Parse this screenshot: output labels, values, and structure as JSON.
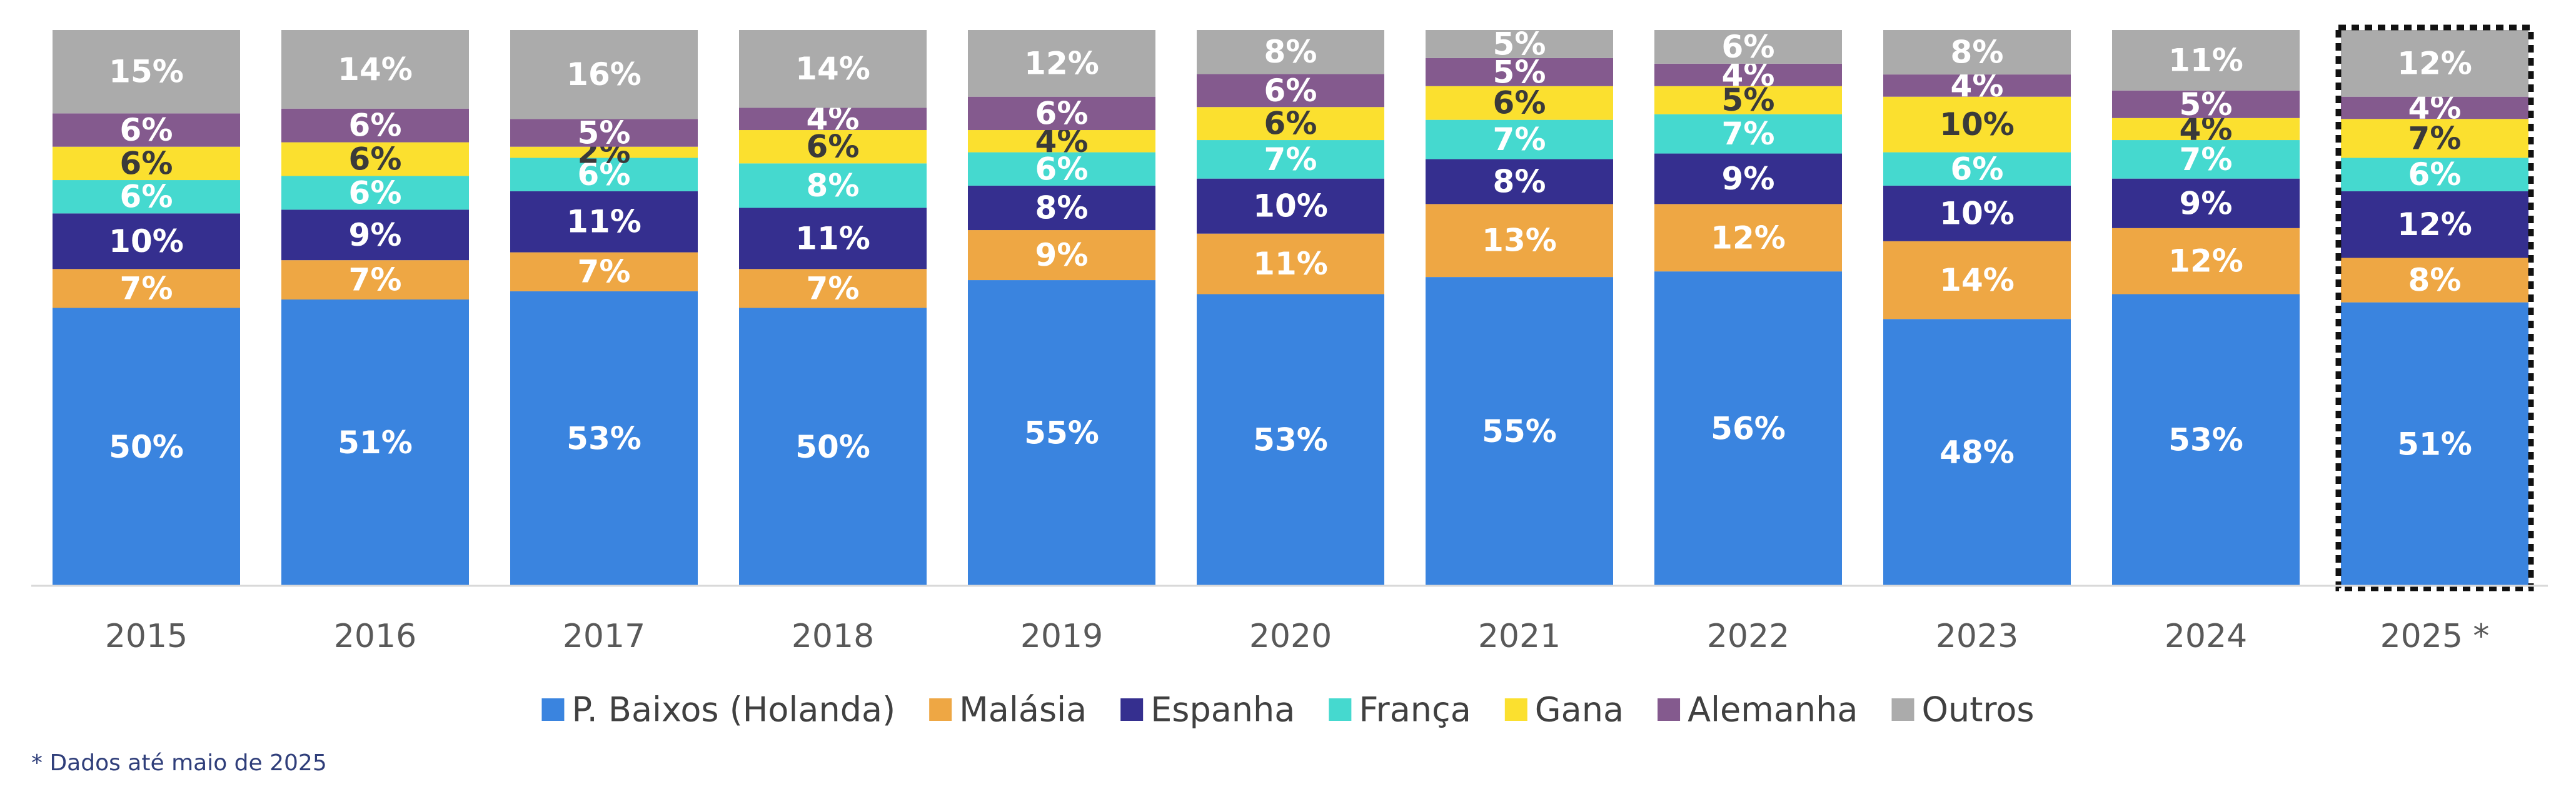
{
  "chart_data": {
    "type": "bar",
    "stacked": true,
    "categories": [
      "2015",
      "2016",
      "2017",
      "2018",
      "2019",
      "2020",
      "2021",
      "2022",
      "2023",
      "2024",
      "2025 *"
    ],
    "highlighted_category": "2025 *",
    "series": [
      {
        "name": "P. Baixos (Holanda)",
        "color": "#3A84DF",
        "label_color": "#ffffff",
        "values": [
          50,
          51,
          53,
          50,
          55,
          53,
          55,
          56,
          48,
          53,
          51
        ]
      },
      {
        "name": "Malásia",
        "color": "#EEA744",
        "label_color": "#ffffff",
        "values": [
          7,
          7,
          7,
          7,
          9,
          11,
          13,
          12,
          14,
          12,
          8
        ]
      },
      {
        "name": "Espanha",
        "color": "#352F8F",
        "label_color": "#ffffff",
        "values": [
          10,
          9,
          11,
          11,
          8,
          10,
          8,
          9,
          10,
          9,
          12
        ]
      },
      {
        "name": "França",
        "color": "#45D9CF",
        "label_color": "#ffffff",
        "values": [
          6,
          6,
          6,
          8,
          6,
          7,
          7,
          7,
          6,
          7,
          6
        ]
      },
      {
        "name": "Gana",
        "color": "#FBE02F",
        "label_color": "#3a3a3a",
        "values": [
          6,
          6,
          2,
          6,
          4,
          6,
          6,
          5,
          10,
          4,
          7
        ]
      },
      {
        "name": "Alemanha",
        "color": "#845A8E",
        "label_color": "#ffffff",
        "values": [
          6,
          6,
          5,
          4,
          6,
          6,
          5,
          4,
          4,
          5,
          4
        ]
      },
      {
        "name": "Outros",
        "color": "#ABABAB",
        "label_color": "#ffffff",
        "values": [
          15,
          14,
          16,
          14,
          12,
          8,
          5,
          6,
          8,
          11,
          12
        ]
      }
    ],
    "value_suffix": "%",
    "ylim": [
      0,
      100
    ],
    "title": "",
    "xlabel": "",
    "ylabel": "",
    "legend_position": "bottom",
    "grid": false
  },
  "footnote": "* Dados até maio de 2025"
}
